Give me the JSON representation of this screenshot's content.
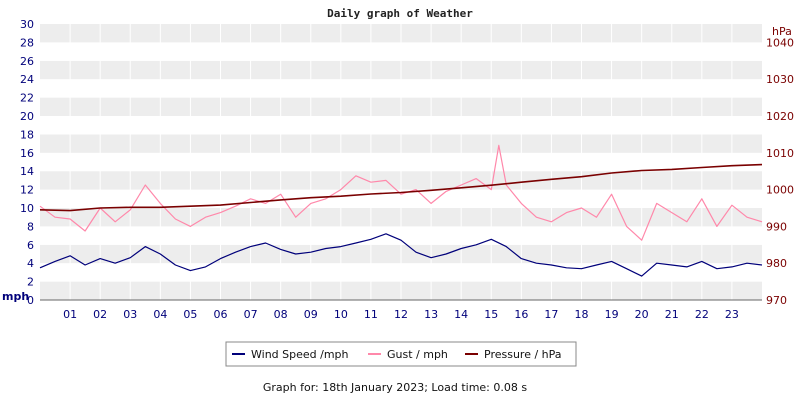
{
  "chart_data": {
    "type": "line",
    "title": "Daily graph of Weather",
    "y_left": {
      "unit": "mph",
      "range": [
        0,
        30
      ],
      "ticks": [
        "0",
        "2",
        "4",
        "6",
        "8",
        "10",
        "12",
        "14",
        "16",
        "18",
        "20",
        "22",
        "24",
        "26",
        "28",
        "30"
      ]
    },
    "y_right": {
      "unit": "hPa",
      "range": [
        970,
        1045
      ],
      "ticks": [
        "970",
        "980",
        "990",
        "1000",
        "1010",
        "1020",
        "1030",
        "1040"
      ]
    },
    "x_ticks": [
      "01",
      "02",
      "03",
      "04",
      "05",
      "06",
      "07",
      "08",
      "09",
      "10",
      "11",
      "12",
      "13",
      "14",
      "15",
      "16",
      "17",
      "18",
      "19",
      "20",
      "21",
      "22",
      "23"
    ],
    "x_range_hours": [
      0,
      24
    ],
    "grid": "horizontal bands",
    "legend_position": "bottom-center",
    "series": [
      {
        "name": "Wind Speed /mph",
        "axis": "left",
        "color": "#00007a",
        "points": [
          [
            0,
            3.5
          ],
          [
            0.5,
            4.2
          ],
          [
            1,
            4.8
          ],
          [
            1.5,
            3.8
          ],
          [
            2,
            4.5
          ],
          [
            2.5,
            4.0
          ],
          [
            3,
            4.6
          ],
          [
            3.5,
            5.8
          ],
          [
            4,
            5.0
          ],
          [
            4.5,
            3.8
          ],
          [
            5,
            3.2
          ],
          [
            5.5,
            3.6
          ],
          [
            6,
            4.5
          ],
          [
            6.5,
            5.2
          ],
          [
            7,
            5.8
          ],
          [
            7.5,
            6.2
          ],
          [
            8,
            5.5
          ],
          [
            8.5,
            5.0
          ],
          [
            9,
            5.2
          ],
          [
            9.5,
            5.6
          ],
          [
            10,
            5.8
          ],
          [
            10.5,
            6.2
          ],
          [
            11,
            6.6
          ],
          [
            11.5,
            7.2
          ],
          [
            12,
            6.5
          ],
          [
            12.5,
            5.2
          ],
          [
            13,
            4.6
          ],
          [
            13.5,
            5.0
          ],
          [
            14,
            5.6
          ],
          [
            14.5,
            6.0
          ],
          [
            15,
            6.6
          ],
          [
            15.5,
            5.8
          ],
          [
            16,
            4.5
          ],
          [
            16.5,
            4.0
          ],
          [
            17,
            3.8
          ],
          [
            17.5,
            3.5
          ],
          [
            18,
            3.4
          ],
          [
            18.5,
            3.8
          ],
          [
            19,
            4.2
          ],
          [
            19.5,
            3.4
          ],
          [
            20,
            2.6
          ],
          [
            20.5,
            4.0
          ],
          [
            21,
            3.8
          ],
          [
            21.5,
            3.6
          ],
          [
            22,
            4.2
          ],
          [
            22.5,
            3.4
          ],
          [
            23,
            3.6
          ],
          [
            23.5,
            4.0
          ],
          [
            24,
            3.8
          ]
        ]
      },
      {
        "name": "Gust / mph",
        "axis": "left",
        "color": "#ff88aa",
        "points": [
          [
            0,
            10.2
          ],
          [
            0.5,
            9.0
          ],
          [
            1,
            8.8
          ],
          [
            1.5,
            7.5
          ],
          [
            2,
            10.0
          ],
          [
            2.5,
            8.5
          ],
          [
            3,
            9.8
          ],
          [
            3.5,
            12.5
          ],
          [
            4,
            10.5
          ],
          [
            4.5,
            8.8
          ],
          [
            5,
            8.0
          ],
          [
            5.5,
            9.0
          ],
          [
            6,
            9.5
          ],
          [
            6.5,
            10.2
          ],
          [
            7,
            11.0
          ],
          [
            7.5,
            10.5
          ],
          [
            8,
            11.5
          ],
          [
            8.5,
            9.0
          ],
          [
            9,
            10.5
          ],
          [
            9.5,
            11.0
          ],
          [
            10,
            12.0
          ],
          [
            10.5,
            13.5
          ],
          [
            11,
            12.8
          ],
          [
            11.5,
            13.0
          ],
          [
            12,
            11.5
          ],
          [
            12.5,
            12.0
          ],
          [
            13,
            10.5
          ],
          [
            13.5,
            11.8
          ],
          [
            14,
            12.5
          ],
          [
            14.5,
            13.2
          ],
          [
            15,
            12.0
          ],
          [
            15.25,
            16.8
          ],
          [
            15.5,
            12.5
          ],
          [
            16,
            10.5
          ],
          [
            16.5,
            9.0
          ],
          [
            17,
            8.5
          ],
          [
            17.5,
            9.5
          ],
          [
            18,
            10.0
          ],
          [
            18.5,
            9.0
          ],
          [
            19,
            11.5
          ],
          [
            19.5,
            8.0
          ],
          [
            20,
            6.5
          ],
          [
            20.5,
            10.5
          ],
          [
            21,
            9.5
          ],
          [
            21.5,
            8.5
          ],
          [
            22,
            11.0
          ],
          [
            22.5,
            8.0
          ],
          [
            23,
            10.3
          ],
          [
            23.5,
            9.0
          ],
          [
            24,
            8.5
          ]
        ]
      },
      {
        "name": "Pressure / hPa",
        "axis": "right",
        "color": "#7a0000",
        "points": [
          [
            0,
            994.5
          ],
          [
            1,
            994.3
          ],
          [
            2,
            995.0
          ],
          [
            3,
            995.2
          ],
          [
            4,
            995.2
          ],
          [
            5,
            995.5
          ],
          [
            6,
            995.8
          ],
          [
            7,
            996.5
          ],
          [
            8,
            997.2
          ],
          [
            9,
            997.8
          ],
          [
            10,
            998.2
          ],
          [
            11,
            998.8
          ],
          [
            12,
            999.2
          ],
          [
            13,
            999.8
          ],
          [
            14,
            1000.5
          ],
          [
            15,
            1001.2
          ],
          [
            16,
            1002.0
          ],
          [
            17,
            1002.8
          ],
          [
            18,
            1003.5
          ],
          [
            19,
            1004.5
          ],
          [
            20,
            1005.2
          ],
          [
            21,
            1005.5
          ],
          [
            22,
            1006.0
          ],
          [
            23,
            1006.5
          ],
          [
            24,
            1006.8
          ]
        ]
      }
    ]
  },
  "footer": "Graph for: 18th January 2023; Load time: 0.08 s"
}
